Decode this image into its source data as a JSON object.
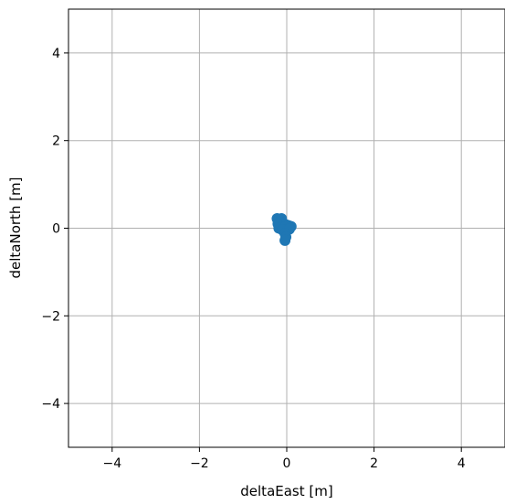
{
  "chart_data": {
    "type": "scatter",
    "title": "",
    "xlabel": "deltaEast [m]",
    "ylabel": "deltaNorth [m]",
    "xlim": [
      -5,
      5
    ],
    "ylim": [
      -5,
      5
    ],
    "xticks": [
      -4,
      -2,
      0,
      2,
      4
    ],
    "yticks": [
      -4,
      -2,
      0,
      2,
      4
    ],
    "xtick_labels": [
      "−4",
      "−2",
      "0",
      "2",
      "4"
    ],
    "ytick_labels": [
      "−4",
      "−2",
      "0",
      "2",
      "4"
    ],
    "grid": true,
    "marker_color": "#1f77b4",
    "series": [
      {
        "points": [
          {
            "x": -0.22,
            "y": 0.22
          },
          {
            "x": -0.18,
            "y": 0.2
          },
          {
            "x": -0.12,
            "y": 0.22
          },
          {
            "x": -0.15,
            "y": 0.14
          },
          {
            "x": -0.2,
            "y": 0.1
          },
          {
            "x": -0.08,
            "y": 0.1
          },
          {
            "x": -0.02,
            "y": 0.08
          },
          {
            "x": 0.04,
            "y": 0.06
          },
          {
            "x": 0.1,
            "y": 0.04
          },
          {
            "x": -0.12,
            "y": 0.02
          },
          {
            "x": -0.18,
            "y": 0.0
          },
          {
            "x": -0.05,
            "y": 0.02
          },
          {
            "x": 0.02,
            "y": -0.02
          },
          {
            "x": -0.1,
            "y": -0.04
          },
          {
            "x": 0.06,
            "y": -0.02
          },
          {
            "x": -0.04,
            "y": -0.12
          },
          {
            "x": -0.02,
            "y": -0.2
          },
          {
            "x": -0.04,
            "y": -0.28
          }
        ]
      }
    ]
  }
}
